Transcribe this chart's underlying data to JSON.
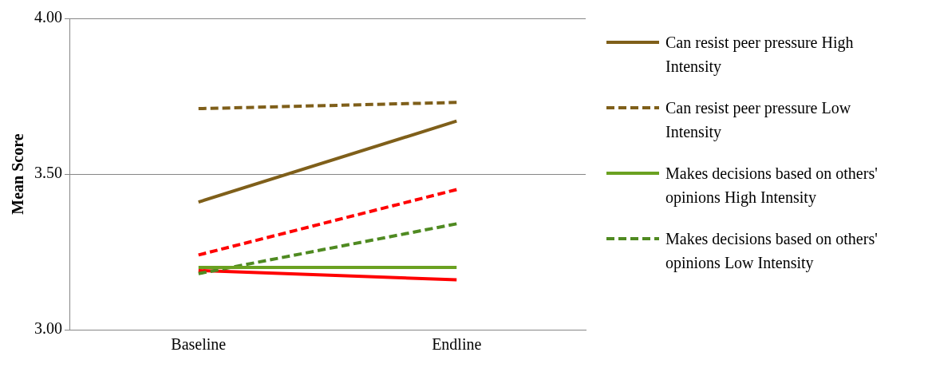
{
  "chart_data": {
    "type": "line",
    "ylabel": "Mean Score",
    "categories": [
      "Baseline",
      "Endline"
    ],
    "series": [
      {
        "name": "Can resist peer pressure High Intensity",
        "color": "#7f5f1a",
        "line_style": "solid",
        "values": [
          3.41,
          3.67
        ]
      },
      {
        "name": "Can resist peer pressure Low Intensity",
        "color": "#7f5f1a",
        "line_style": "dashed",
        "values": [
          3.71,
          3.73
        ]
      },
      {
        "name": "Makes decisions based on others' opinions High Intensity",
        "color": "#6aa121",
        "line_style": "solid",
        "values": [
          3.2,
          3.2
        ]
      },
      {
        "name": "Makes decisions based on others' opinions Low Intensity",
        "color": "#4f8a21",
        "line_style": "dashed",
        "values": [
          3.18,
          3.34
        ]
      },
      {
        "color": "#ff0000",
        "line_style": "solid",
        "values": [
          3.19,
          3.16
        ]
      },
      {
        "color": "#ff0000",
        "line_style": "dashed",
        "values": [
          3.24,
          3.45
        ]
      }
    ],
    "ylim": [
      3,
      4
    ],
    "yticks": [
      {
        "value": 3,
        "label": "3.00"
      },
      {
        "value": 3.5,
        "label": "3.50"
      },
      {
        "value": 4,
        "label": "4.00"
      }
    ],
    "grid": "y",
    "legend": "right",
    "marker": "none"
  }
}
